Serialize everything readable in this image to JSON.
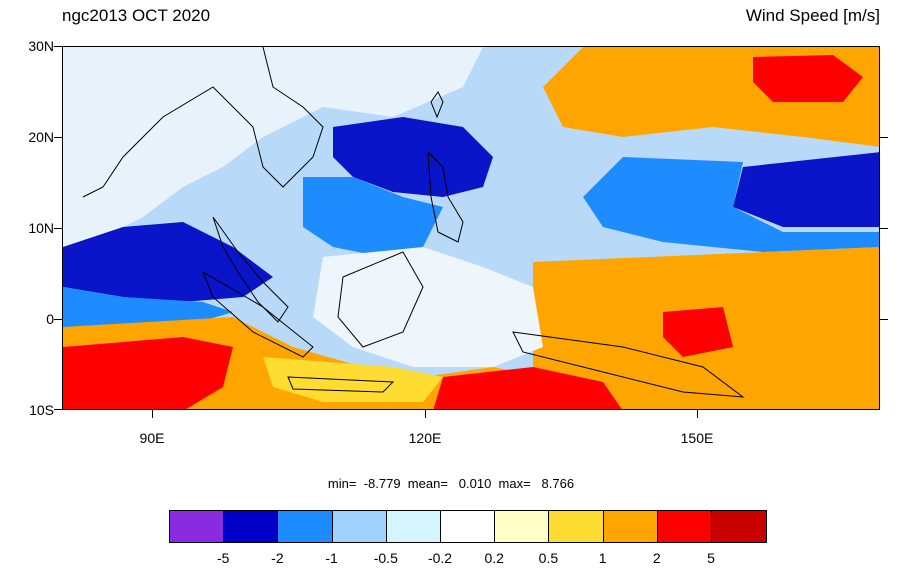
{
  "title_left": "ngc2013 OCT 2020",
  "title_right": "Wind Speed [m/s]",
  "lat_labels": [
    "30N",
    "20N",
    "10N",
    "0",
    "10S"
  ],
  "lon_labels": [
    "90E",
    "120E",
    "150E"
  ],
  "stats": {
    "min_label": "min=",
    "min_value": "-8.779",
    "mean_label": "mean=",
    "mean_value": "0.010",
    "max_label": "max=",
    "max_value": "8.766"
  },
  "colorbar": {
    "colors": [
      "#8a2be2",
      "#0000c8",
      "#1e8cff",
      "#a0d2ff",
      "#d2f5ff",
      "#ffffff",
      "#ffffc8",
      "#ffdc32",
      "#ffa500",
      "#ff0000",
      "#c80000"
    ],
    "labels": [
      "-5",
      "-2",
      "-1",
      "-0.5",
      "-0.2",
      "0.2",
      "0.5",
      "1",
      "2",
      "5"
    ]
  }
}
